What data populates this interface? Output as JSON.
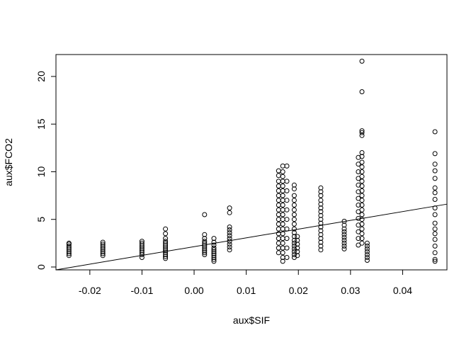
{
  "chart_data": {
    "type": "scatter",
    "xlabel": "aux$SIF",
    "ylabel": "aux$FCO2",
    "xlim": [
      -0.0265,
      0.0485
    ],
    "ylim": [
      -0.3,
      22.3
    ],
    "x_ticks": [
      -0.02,
      -0.01,
      0.0,
      0.01,
      0.02,
      0.03,
      0.04
    ],
    "x_tick_labels": [
      "-0.02",
      "-0.01",
      "0.00",
      "0.01",
      "0.02",
      "0.03",
      "0.04"
    ],
    "y_ticks": [
      0,
      5,
      10,
      15,
      20
    ],
    "y_tick_labels": [
      "0",
      "5",
      "10",
      "15",
      "20"
    ],
    "point_style": "open-circle",
    "grid": false,
    "legend": "none",
    "regression_line": {
      "x": [
        -0.0265,
        0.0485
      ],
      "y": [
        -0.3,
        6.6
      ]
    },
    "series": [
      {
        "points": [
          [
            -0.024,
            1.2
          ],
          [
            -0.024,
            1.4
          ],
          [
            -0.024,
            1.6
          ],
          [
            -0.024,
            1.8
          ],
          [
            -0.024,
            2.0
          ],
          [
            -0.024,
            2.2
          ],
          [
            -0.024,
            2.4
          ],
          [
            -0.024,
            2.5
          ],
          [
            -0.0175,
            1.2
          ],
          [
            -0.0175,
            1.4
          ],
          [
            -0.0175,
            1.6
          ],
          [
            -0.0175,
            1.8
          ],
          [
            -0.0175,
            2.0
          ],
          [
            -0.0175,
            2.2
          ],
          [
            -0.0175,
            2.4
          ],
          [
            -0.0175,
            2.6
          ],
          [
            -0.01,
            1.0
          ],
          [
            -0.01,
            1.3
          ],
          [
            -0.01,
            1.5
          ],
          [
            -0.01,
            1.7
          ],
          [
            -0.01,
            1.9
          ],
          [
            -0.01,
            2.1
          ],
          [
            -0.01,
            2.3
          ],
          [
            -0.01,
            2.5
          ],
          [
            -0.01,
            2.7
          ],
          [
            -0.0055,
            0.9
          ],
          [
            -0.0055,
            1.1
          ],
          [
            -0.0055,
            1.3
          ],
          [
            -0.0055,
            1.5
          ],
          [
            -0.0055,
            1.7
          ],
          [
            -0.0055,
            1.9
          ],
          [
            -0.0055,
            2.1
          ],
          [
            -0.0055,
            2.3
          ],
          [
            -0.0055,
            2.5
          ],
          [
            -0.0055,
            2.7
          ],
          [
            -0.0055,
            3.0
          ],
          [
            -0.0055,
            3.5
          ],
          [
            -0.0055,
            4.0
          ],
          [
            0.002,
            1.3
          ],
          [
            0.002,
            1.5
          ],
          [
            0.002,
            1.7
          ],
          [
            0.002,
            1.9
          ],
          [
            0.002,
            2.1
          ],
          [
            0.002,
            2.3
          ],
          [
            0.002,
            2.5
          ],
          [
            0.002,
            2.7
          ],
          [
            0.002,
            3.0
          ],
          [
            0.002,
            3.4
          ],
          [
            0.002,
            5.5
          ],
          [
            0.0038,
            0.6
          ],
          [
            0.0038,
            0.8
          ],
          [
            0.0038,
            1.0
          ],
          [
            0.0038,
            1.2
          ],
          [
            0.0038,
            1.4
          ],
          [
            0.0038,
            1.6
          ],
          [
            0.0038,
            1.8
          ],
          [
            0.0038,
            2.0
          ],
          [
            0.0038,
            2.3
          ],
          [
            0.0038,
            2.6
          ],
          [
            0.0038,
            3.0
          ],
          [
            0.0068,
            1.8
          ],
          [
            0.0068,
            2.1
          ],
          [
            0.0068,
            2.4
          ],
          [
            0.0068,
            2.7
          ],
          [
            0.0068,
            3.0
          ],
          [
            0.0068,
            3.3
          ],
          [
            0.0068,
            3.6
          ],
          [
            0.0068,
            3.9
          ],
          [
            0.0068,
            4.2
          ],
          [
            0.0068,
            5.7
          ],
          [
            0.0068,
            6.2
          ],
          [
            0.0162,
            1.5
          ],
          [
            0.0162,
            2.0
          ],
          [
            0.0162,
            2.5
          ],
          [
            0.0162,
            3.0
          ],
          [
            0.0162,
            3.5
          ],
          [
            0.0162,
            4.0
          ],
          [
            0.0162,
            4.5
          ],
          [
            0.0162,
            5.0
          ],
          [
            0.0162,
            5.5
          ],
          [
            0.0162,
            6.0
          ],
          [
            0.0162,
            6.5
          ],
          [
            0.0162,
            7.0
          ],
          [
            0.0162,
            7.5
          ],
          [
            0.0162,
            8.0
          ],
          [
            0.0162,
            8.5
          ],
          [
            0.0162,
            9.0
          ],
          [
            0.0162,
            9.6
          ],
          [
            0.0162,
            10.1
          ],
          [
            0.017,
            0.6
          ],
          [
            0.017,
            1.0
          ],
          [
            0.017,
            1.5
          ],
          [
            0.017,
            2.0
          ],
          [
            0.017,
            2.5
          ],
          [
            0.017,
            3.0
          ],
          [
            0.017,
            3.5
          ],
          [
            0.017,
            4.0
          ],
          [
            0.017,
            4.5
          ],
          [
            0.017,
            5.0
          ],
          [
            0.017,
            5.5
          ],
          [
            0.017,
            6.0
          ],
          [
            0.017,
            6.5
          ],
          [
            0.017,
            7.0
          ],
          [
            0.017,
            7.5
          ],
          [
            0.017,
            8.0
          ],
          [
            0.017,
            8.5
          ],
          [
            0.017,
            9.0
          ],
          [
            0.017,
            9.5
          ],
          [
            0.017,
            10.0
          ],
          [
            0.017,
            10.6
          ],
          [
            0.0178,
            1.0
          ],
          [
            0.0178,
            2.0
          ],
          [
            0.0178,
            3.0
          ],
          [
            0.0178,
            4.0
          ],
          [
            0.0178,
            5.0
          ],
          [
            0.0178,
            6.0
          ],
          [
            0.0178,
            7.0
          ],
          [
            0.0178,
            8.0
          ],
          [
            0.0178,
            9.0
          ],
          [
            0.0178,
            10.6
          ],
          [
            0.0192,
            1.0
          ],
          [
            0.0192,
            1.3
          ],
          [
            0.0192,
            1.6
          ],
          [
            0.0192,
            1.9
          ],
          [
            0.0192,
            2.2
          ],
          [
            0.0192,
            2.5
          ],
          [
            0.0192,
            2.8
          ],
          [
            0.0192,
            3.2
          ],
          [
            0.0192,
            3.6
          ],
          [
            0.0192,
            4.0
          ],
          [
            0.0192,
            4.5
          ],
          [
            0.0192,
            5.0
          ],
          [
            0.0192,
            5.5
          ],
          [
            0.0192,
            6.0
          ],
          [
            0.0192,
            6.5
          ],
          [
            0.0192,
            7.0
          ],
          [
            0.0192,
            7.5
          ],
          [
            0.0192,
            8.2
          ],
          [
            0.0192,
            8.6
          ],
          [
            0.0198,
            1.2
          ],
          [
            0.0198,
            1.6
          ],
          [
            0.0198,
            2.0
          ],
          [
            0.0198,
            2.4
          ],
          [
            0.0198,
            2.8
          ],
          [
            0.0198,
            3.2
          ],
          [
            0.0243,
            1.8
          ],
          [
            0.0243,
            2.2
          ],
          [
            0.0243,
            2.6
          ],
          [
            0.0243,
            3.0
          ],
          [
            0.0243,
            3.4
          ],
          [
            0.0243,
            3.8
          ],
          [
            0.0243,
            4.2
          ],
          [
            0.0243,
            4.6
          ],
          [
            0.0243,
            5.0
          ],
          [
            0.0243,
            5.4
          ],
          [
            0.0243,
            5.8
          ],
          [
            0.0243,
            6.2
          ],
          [
            0.0243,
            6.6
          ],
          [
            0.0243,
            7.0
          ],
          [
            0.0243,
            7.5
          ],
          [
            0.0243,
            7.9
          ],
          [
            0.0243,
            8.3
          ],
          [
            0.0288,
            1.9
          ],
          [
            0.0288,
            2.2
          ],
          [
            0.0288,
            2.5
          ],
          [
            0.0288,
            2.8
          ],
          [
            0.0288,
            3.1
          ],
          [
            0.0288,
            3.4
          ],
          [
            0.0288,
            3.7
          ],
          [
            0.0288,
            4.0
          ],
          [
            0.0288,
            4.4
          ],
          [
            0.0288,
            4.8
          ],
          [
            0.0315,
            2.3
          ],
          [
            0.0315,
            3.0
          ],
          [
            0.0315,
            3.7
          ],
          [
            0.0315,
            4.4
          ],
          [
            0.0315,
            5.1
          ],
          [
            0.0315,
            5.8
          ],
          [
            0.0315,
            6.5
          ],
          [
            0.0315,
            7.2
          ],
          [
            0.0315,
            7.9
          ],
          [
            0.0315,
            8.6
          ],
          [
            0.0315,
            9.3
          ],
          [
            0.0315,
            10.0
          ],
          [
            0.0315,
            10.8
          ],
          [
            0.0315,
            11.5
          ],
          [
            0.0322,
            2.5
          ],
          [
            0.0322,
            3.0
          ],
          [
            0.0322,
            3.5
          ],
          [
            0.0322,
            4.0
          ],
          [
            0.0322,
            4.5
          ],
          [
            0.0322,
            5.0
          ],
          [
            0.0322,
            5.5
          ],
          [
            0.0322,
            6.0
          ],
          [
            0.0322,
            6.5
          ],
          [
            0.0322,
            7.0
          ],
          [
            0.0322,
            7.5
          ],
          [
            0.0322,
            8.0
          ],
          [
            0.0322,
            8.5
          ],
          [
            0.0322,
            9.0
          ],
          [
            0.0322,
            9.5
          ],
          [
            0.0322,
            10.0
          ],
          [
            0.0322,
            10.5
          ],
          [
            0.0322,
            11.0
          ],
          [
            0.0322,
            11.6
          ],
          [
            0.0322,
            12.0
          ],
          [
            0.0322,
            13.8
          ],
          [
            0.0322,
            14.1
          ],
          [
            0.0322,
            14.3
          ],
          [
            0.0322,
            18.4
          ],
          [
            0.0322,
            21.6
          ],
          [
            0.0332,
            0.7
          ],
          [
            0.0332,
            1.0
          ],
          [
            0.0332,
            1.3
          ],
          [
            0.0332,
            1.6
          ],
          [
            0.0332,
            1.9
          ],
          [
            0.0332,
            2.2
          ],
          [
            0.0332,
            2.5
          ],
          [
            0.0462,
            0.6
          ],
          [
            0.0462,
            0.8
          ],
          [
            0.0462,
            1.5
          ],
          [
            0.0462,
            2.2
          ],
          [
            0.0462,
            2.9
          ],
          [
            0.0462,
            3.5
          ],
          [
            0.0462,
            4.0
          ],
          [
            0.0462,
            4.6
          ],
          [
            0.0462,
            5.5
          ],
          [
            0.0462,
            6.2
          ],
          [
            0.0462,
            7.1
          ],
          [
            0.0462,
            7.8
          ],
          [
            0.0462,
            8.3
          ],
          [
            0.0462,
            9.3
          ],
          [
            0.0462,
            10.1
          ],
          [
            0.0462,
            10.8
          ],
          [
            0.0462,
            11.9
          ],
          [
            0.0462,
            14.2
          ]
        ]
      }
    ]
  }
}
